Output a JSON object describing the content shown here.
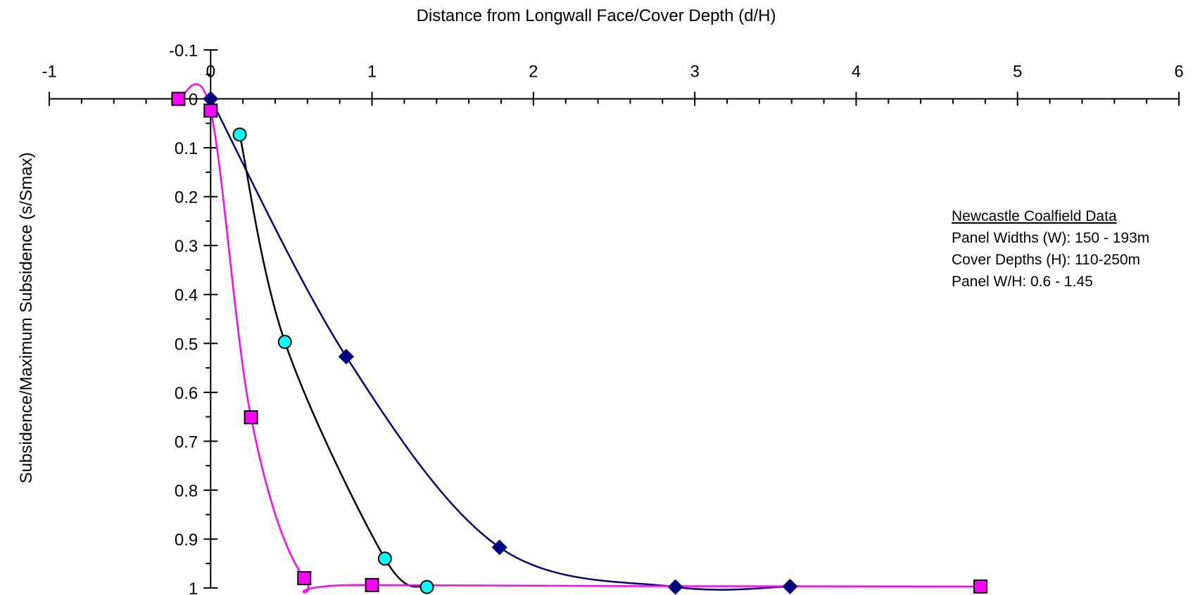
{
  "chart_data": {
    "type": "scatter",
    "title": "",
    "xlabel": "Distance from Longwall Face/Cover Depth (d/H)",
    "ylabel": "Subsidence/Maximum Subsidence (s/Smax)",
    "xlim": [
      -1,
      6
    ],
    "ylim": [
      -0.1,
      1
    ],
    "y_inverted": true,
    "x_axis_position": "top",
    "x_ticks": [
      "-1",
      "0",
      "1",
      "2",
      "3",
      "4",
      "5",
      "6"
    ],
    "y_ticks": [
      "-0.1",
      "0",
      "0.1",
      "0.2",
      "0.3",
      "0.4",
      "0.5",
      "0.6",
      "0.7",
      "0.8",
      "0.9",
      "1"
    ],
    "grid": false,
    "series": [
      {
        "marker": "diamond",
        "color": "#000080",
        "fill": "#000080",
        "points": [
          [
            0,
            0
          ],
          [
            0.84,
            0.527
          ],
          [
            1.79,
            0.917
          ],
          [
            2.88,
            0.998
          ],
          [
            3.59,
            0.997
          ]
        ]
      },
      {
        "marker": "circle",
        "color": "#000000",
        "fill": "#00FFFF",
        "points": [
          [
            0.18,
            0.073
          ],
          [
            0.46,
            0.497
          ],
          [
            1.08,
            0.94
          ],
          [
            1.34,
            0.998
          ]
        ]
      },
      {
        "marker": "square",
        "color": "#FF00FF",
        "fill": "#FF00FF",
        "points": [
          [
            -0.2,
            0
          ],
          [
            0,
            0.024
          ],
          [
            0.25,
            0.651
          ],
          [
            0.58,
            0.98
          ],
          [
            1,
            0.994
          ],
          [
            4.77,
            0.997
          ]
        ]
      }
    ],
    "annotation": {
      "heading": "Newcastle Coalfield Data",
      "lines": [
        "Panel Widths (W): 150 - 193m",
        "Cover Depths (H): 110-250m",
        "Panel W/H: 0.6 - 1.45"
      ]
    }
  }
}
